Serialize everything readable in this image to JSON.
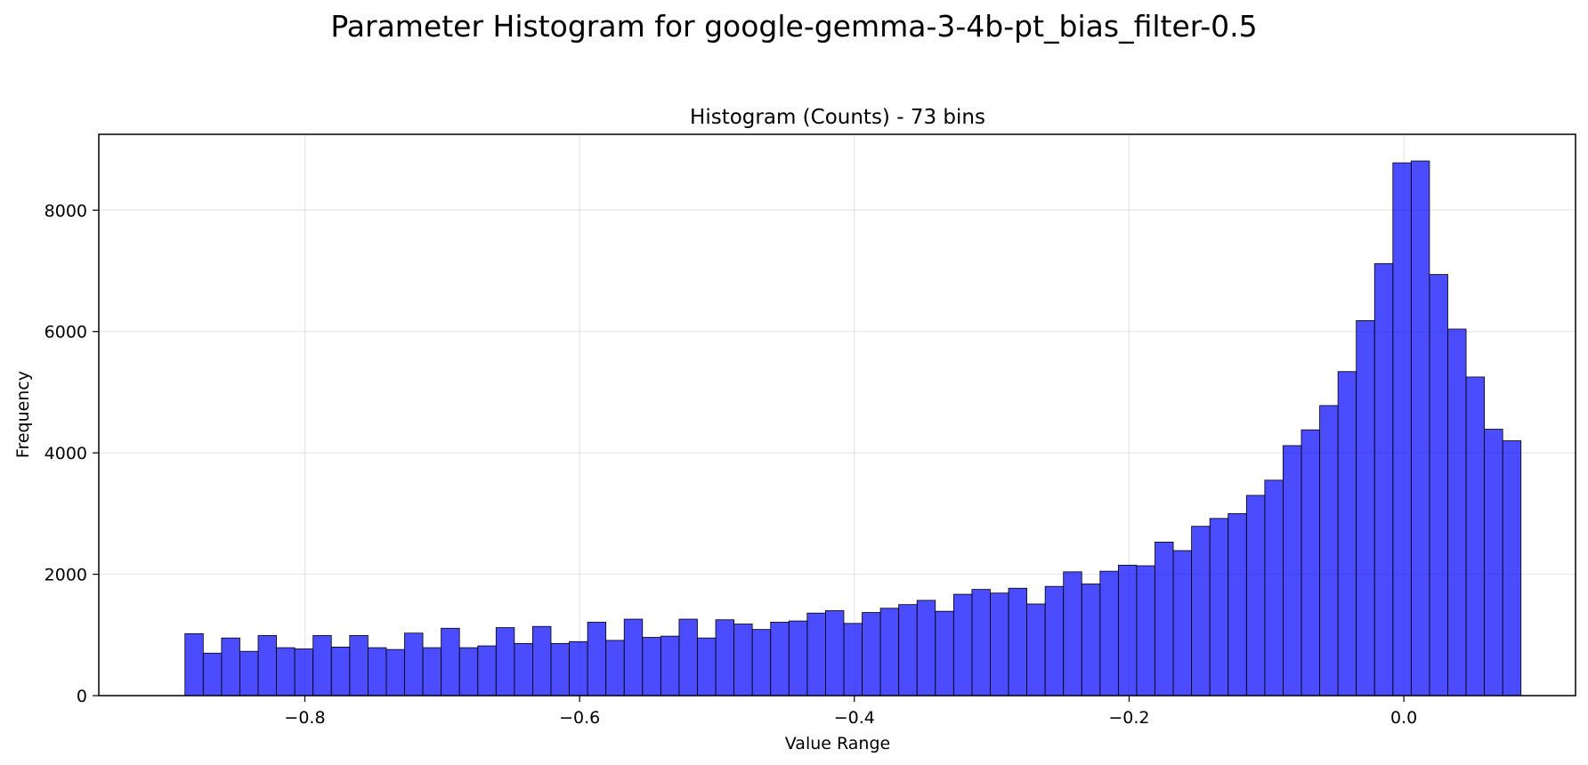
{
  "chart_data": {
    "type": "bar",
    "title": "Parameter Histogram for google-gemma-3-4b-pt_bias_filter-0.5",
    "subtitle": "Histogram (Counts) - 73 bins",
    "xlabel": "Value Range",
    "ylabel": "Frequency",
    "xlim": [
      -0.95,
      0.125
    ],
    "ylim": [
      0,
      9250
    ],
    "grid": true,
    "bar_color": "#0000ff",
    "bin_range": [
      -0.8873,
      0.0853
    ],
    "x_ticks": [
      -0.8,
      -0.6,
      -0.4,
      -0.2,
      0.0
    ],
    "x_tick_labels": [
      "−0.8",
      "−0.6",
      "−0.4",
      "−0.2",
      "0.0"
    ],
    "y_ticks": [
      0,
      2000,
      4000,
      6000,
      8000
    ],
    "y_tick_labels": [
      "0",
      "2000",
      "4000",
      "6000",
      "8000"
    ],
    "values": [
      1020,
      700,
      950,
      730,
      990,
      790,
      770,
      990,
      800,
      990,
      790,
      760,
      1030,
      790,
      1110,
      790,
      820,
      1120,
      860,
      1140,
      860,
      890,
      1210,
      910,
      1260,
      960,
      980,
      1260,
      950,
      1250,
      1180,
      1090,
      1210,
      1230,
      1360,
      1400,
      1190,
      1370,
      1440,
      1500,
      1570,
      1390,
      1670,
      1750,
      1690,
      1770,
      1510,
      1800,
      2040,
      1840,
      2050,
      2150,
      2140,
      2530,
      2390,
      2790,
      2920,
      3000,
      3300,
      3550,
      4120,
      4380,
      4780,
      5340,
      6180,
      7120,
      8780,
      8810,
      6940,
      6040,
      5250,
      4390,
      4200
    ]
  }
}
